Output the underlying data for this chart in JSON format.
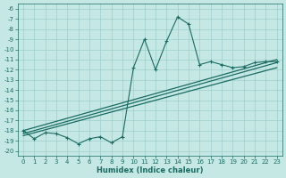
{
  "xlabel": "Humidex (Indice chaleur)",
  "bg_color": "#c5e8e5",
  "grid_color": "#9ecfcc",
  "line_color": "#1a6b62",
  "x_values": [
    0,
    1,
    2,
    3,
    4,
    5,
    6,
    7,
    8,
    9,
    10,
    11,
    12,
    13,
    14,
    15,
    16,
    17,
    18,
    19,
    20,
    21,
    22,
    23
  ],
  "main_y": [
    -18.0,
    -18.8,
    -18.2,
    -18.3,
    -18.7,
    -19.3,
    -18.8,
    -18.6,
    -19.2,
    -18.6,
    -11.8,
    -9.0,
    -12.0,
    -9.2,
    -6.8,
    -7.5,
    -11.5,
    -11.2,
    -11.5,
    -11.8,
    -11.7,
    -11.3,
    -11.2,
    -11.2
  ],
  "trend_lines": [
    {
      "x": [
        0,
        23
      ],
      "y": [
        -18.0,
        -11.0
      ]
    },
    {
      "x": [
        0,
        23
      ],
      "y": [
        -18.3,
        -11.3
      ]
    },
    {
      "x": [
        0,
        23
      ],
      "y": [
        -18.5,
        -11.8
      ]
    }
  ],
  "ylim": [
    -20.5,
    -5.5
  ],
  "xlim": [
    -0.5,
    23.5
  ],
  "yticks": [
    -20,
    -19,
    -18,
    -17,
    -16,
    -15,
    -14,
    -13,
    -12,
    -11,
    -10,
    -9,
    -8,
    -7,
    -6
  ],
  "xticks": [
    0,
    1,
    2,
    3,
    4,
    5,
    6,
    7,
    8,
    9,
    10,
    11,
    12,
    13,
    14,
    15,
    16,
    17,
    18,
    19,
    20,
    21,
    22,
    23
  ],
  "tick_fontsize": 5,
  "xlabel_fontsize": 6
}
